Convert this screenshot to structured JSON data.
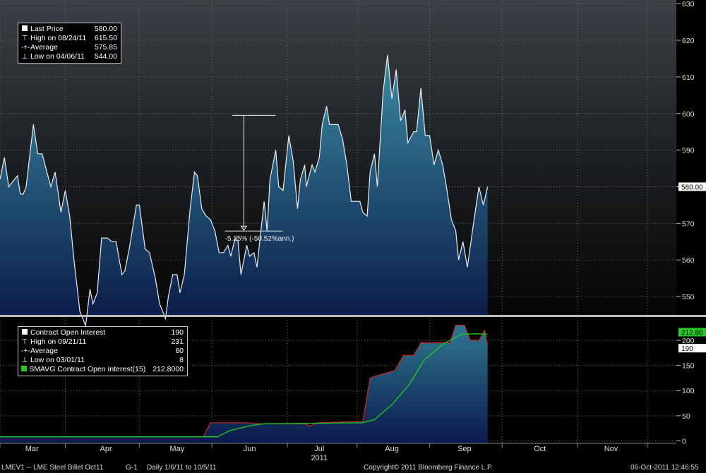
{
  "chart_data": [
    {
      "type": "area",
      "name": "price-panel",
      "ylim": [
        545,
        631
      ],
      "yticks": [
        550,
        560,
        570,
        580,
        590,
        600,
        610,
        620,
        630
      ],
      "last_value_label": "580.00",
      "legend": [
        {
          "symbol": "square",
          "label": "Last Price",
          "value": "580.00"
        },
        {
          "symbol": "high",
          "label": "High on 08/24/11",
          "value": "615.50"
        },
        {
          "symbol": "avg",
          "label": "Average",
          "value": "575.85"
        },
        {
          "symbol": "low",
          "label": "Low on 04/06/11",
          "value": "544.00"
        }
      ],
      "annotation": {
        "text": "-5.25% (-50.52%ann.)",
        "from_day": 160,
        "from_value": 599.5,
        "to_day": 185,
        "to_value": 568.1
      },
      "series": [
        {
          "name": "Last Price",
          "day_value_pairs": [
            [
              0,
              582
            ],
            [
              3,
              588
            ],
            [
              6,
              580
            ],
            [
              12,
              583
            ],
            [
              14,
              578
            ],
            [
              16,
              578
            ],
            [
              18,
              580
            ],
            [
              23,
              597
            ],
            [
              26,
              589
            ],
            [
              29,
              589
            ],
            [
              35,
              580
            ],
            [
              38,
              584
            ],
            [
              42,
              573
            ],
            [
              45,
              579
            ],
            [
              48,
              572
            ],
            [
              51,
              560
            ],
            [
              55,
              546
            ],
            [
              59,
              542
            ],
            [
              62,
              552
            ],
            [
              64,
              548
            ],
            [
              67,
              551
            ],
            [
              70,
              566
            ],
            [
              74,
              566
            ],
            [
              77,
              565
            ],
            [
              80,
              565
            ],
            [
              84,
              556
            ],
            [
              86,
              557
            ],
            [
              89,
              563
            ],
            [
              94,
              575
            ],
            [
              96,
              575
            ],
            [
              100,
              563
            ],
            [
              103,
              562
            ],
            [
              107,
              555
            ],
            [
              110,
              548
            ],
            [
              114,
              544
            ],
            [
              116,
              550
            ],
            [
              119,
              556
            ],
            [
              122,
              556
            ],
            [
              124,
              551
            ],
            [
              127,
              556
            ],
            [
              131,
              574
            ],
            [
              134,
              584
            ],
            [
              136,
              583
            ],
            [
              139,
              574
            ],
            [
              142,
              572
            ],
            [
              145,
              571
            ],
            [
              148,
              568
            ],
            [
              151,
              562
            ],
            [
              154,
              562
            ],
            [
              157,
              564
            ],
            [
              159,
              561
            ],
            [
              162,
              566
            ],
            [
              164,
              565
            ],
            [
              166,
              556
            ],
            [
              170,
              564
            ],
            [
              172,
              561
            ],
            [
              175,
              562
            ],
            [
              177,
              558
            ],
            [
              182,
              576
            ],
            [
              184,
              568
            ],
            [
              186,
              582
            ],
            [
              190,
              590
            ],
            [
              192,
              580
            ],
            [
              195,
              579
            ],
            [
              199,
              594
            ],
            [
              202,
              587
            ],
            [
              205,
              574
            ],
            [
              207,
              582
            ],
            [
              210,
              586
            ],
            [
              211,
              580
            ],
            [
              215,
              586
            ],
            [
              217,
              584
            ],
            [
              220,
              588
            ],
            [
              222,
              597
            ],
            [
              225,
              602
            ],
            [
              227,
              597
            ],
            [
              230,
              597
            ],
            [
              233,
              597
            ],
            [
              236,
              593
            ],
            [
              239,
              586
            ],
            [
              242,
              576
            ],
            [
              245,
              576
            ],
            [
              248,
              576
            ],
            [
              250,
              573
            ],
            [
              253,
              572
            ],
            [
              255,
              584
            ],
            [
              258,
              589
            ],
            [
              260,
              580
            ],
            [
              264,
              606
            ],
            [
              267,
              616
            ],
            [
              270,
              604
            ],
            [
              273,
              612
            ],
            [
              276,
              598
            ],
            [
              279,
              601
            ],
            [
              281,
              592
            ],
            [
              285,
              595
            ],
            [
              287,
              595
            ],
            [
              290,
              607
            ],
            [
              293,
              594
            ],
            [
              296,
              594
            ],
            [
              299,
              586
            ],
            [
              302,
              590
            ],
            [
              305,
              586
            ],
            [
              308,
              579
            ],
            [
              311,
              571
            ],
            [
              314,
              568
            ],
            [
              316,
              560
            ],
            [
              319,
              565
            ],
            [
              322,
              558
            ],
            [
              327,
              572
            ],
            [
              330,
              580
            ],
            [
              333,
              575
            ],
            [
              336,
              580
            ]
          ]
        }
      ]
    },
    {
      "type": "area",
      "name": "open-interest-panel",
      "ylim": [
        -5,
        245
      ],
      "yticks": [
        0,
        50,
        100,
        150,
        200
      ],
      "last_value_labels": [
        "212.80",
        "190"
      ],
      "legend": [
        {
          "symbol": "square",
          "label": "Contract Open Interest",
          "value": "190"
        },
        {
          "symbol": "high",
          "label": "High on 09/21/11",
          "value": "231"
        },
        {
          "symbol": "avg",
          "label": "Average",
          "value": "60"
        },
        {
          "symbol": "low",
          "label": "Low on 03/01/11",
          "value": "8"
        },
        {
          "symbol": "green-square",
          "label": "SMAVG Contract Open Interest(15)",
          "value": "212.8000"
        }
      ],
      "series": [
        {
          "name": "Contract Open Interest",
          "day_value_pairs": [
            [
              0,
              8
            ],
            [
              140,
              8
            ],
            [
              145,
              36
            ],
            [
              170,
              36
            ],
            [
              180,
              34
            ],
            [
              210,
              34
            ],
            [
              214,
              29
            ],
            [
              218,
              36
            ],
            [
              250,
              39
            ],
            [
              255,
              125
            ],
            [
              260,
              130
            ],
            [
              266,
              135
            ],
            [
              272,
              140
            ],
            [
              278,
              170
            ],
            [
              285,
              170
            ],
            [
              290,
              195
            ],
            [
              300,
              195
            ],
            [
              310,
              195
            ],
            [
              314,
              230
            ],
            [
              320,
              230
            ],
            [
              324,
              200
            ],
            [
              330,
              200
            ],
            [
              334,
              220
            ],
            [
              336,
              190
            ]
          ]
        },
        {
          "name": "SMAVG Contract Open Interest(15)",
          "day_value_pairs": [
            [
              0,
              8
            ],
            [
              150,
              8
            ],
            [
              158,
              20
            ],
            [
              172,
              30
            ],
            [
              182,
              34
            ],
            [
              250,
              36
            ],
            [
              258,
              42
            ],
            [
              270,
              72
            ],
            [
              282,
              112
            ],
            [
              292,
              160
            ],
            [
              305,
              192
            ],
            [
              318,
              212
            ],
            [
              328,
              213
            ],
            [
              336,
              212
            ]
          ]
        }
      ]
    }
  ],
  "x_axis": {
    "months": [
      {
        "label": "Mar",
        "day": 22
      },
      {
        "label": "Apr",
        "day": 73
      },
      {
        "label": "May",
        "day": 122
      },
      {
        "label": "Jun",
        "day": 172
      },
      {
        "label": "Jul",
        "day": 220
      },
      {
        "label": "Aug",
        "day": 270
      },
      {
        "label": "Sep",
        "day": 320
      },
      {
        "label": "Oct",
        "day": 372
      },
      {
        "label": "Nov",
        "day": 421
      }
    ],
    "month_starts": [
      0,
      45,
      96,
      146,
      198,
      246,
      296,
      346,
      398,
      446
    ],
    "year_label": "2011",
    "year_day": 220
  },
  "footer": {
    "ticker": "LMEV1 -- LME Steel Billet  Oct11",
    "page": "G-1",
    "range": "Daily  1/6/11 to 10/5/11",
    "copyright": "Copyright© 2011 Bloomberg Finance L.P.",
    "timestamp": "06-Oct-2011 12:46:55"
  },
  "colors": {
    "line_price": "#e8eef4",
    "area_top": "#2f7792",
    "area_bottom": "#0b1a4c",
    "oi_line": "#cc2222",
    "smavg_line": "#22cc22"
  }
}
